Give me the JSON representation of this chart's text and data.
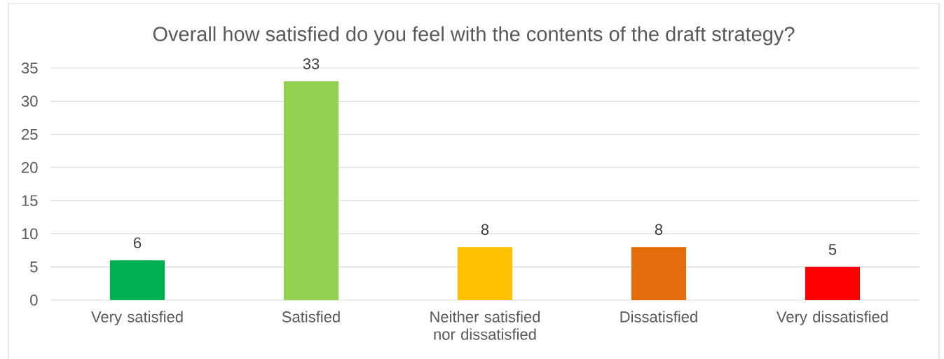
{
  "chart_data": {
    "type": "bar",
    "title": "Overall how satisfied do you feel with the contents of the draft strategy?",
    "categories": [
      "Very satisfied",
      "Satisfied",
      "Neither satisfied nor dissatisfied",
      "Dissatisfied",
      "Very dissatisfied"
    ],
    "values": [
      6,
      33,
      8,
      8,
      5
    ],
    "colors": [
      "#00b050",
      "#92d050",
      "#ffc000",
      "#e46c0a",
      "#ff0000"
    ],
    "ylim": [
      0,
      35
    ],
    "yticks": [
      0,
      5,
      10,
      15,
      20,
      25,
      30,
      35
    ],
    "grid": "y",
    "data_labels": true
  }
}
